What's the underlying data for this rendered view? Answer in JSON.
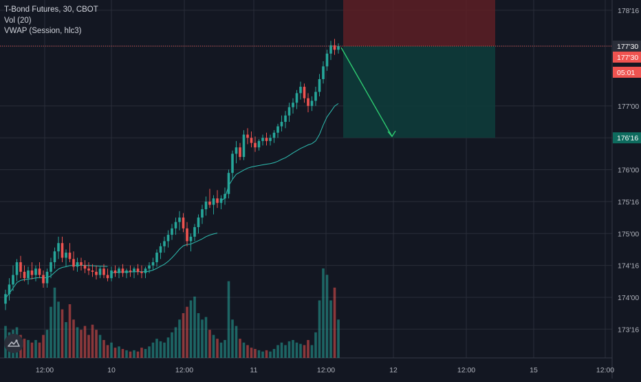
{
  "legend": {
    "symbol_line": "T-Bond Futures, 30, CBOT",
    "volume_line": "Vol (20)",
    "vwap_line": "VWAP (Session, hlc3)"
  },
  "colors": {
    "background": "#131722",
    "grid": "#2a2e39",
    "up": "#26a69a",
    "down": "#ef5350",
    "vwap": "#2fc0b3",
    "arrow": "#2ecc71",
    "stop_zone": "#5d1f25",
    "target_zone": "#0e3b3a"
  },
  "icons": {
    "logo": "tradingview-logo-icon",
    "arrow": "trend-arrow-icon"
  },
  "price_tags": [
    {
      "label": "177'30",
      "price": 177.9375,
      "color": "#ef5350"
    },
    {
      "label": "05:01",
      "price": 177.7,
      "color": "#ef5350"
    },
    {
      "label": "176'16",
      "price": 176.5,
      "color": "#0e6b5e"
    }
  ],
  "position_tool": {
    "type": "short",
    "entry": 177.9375,
    "stop": 178.5,
    "target": 176.5
  },
  "chart_data": {
    "type": "candlestick",
    "title": "T-Bond Futures, 30, CBOT",
    "y_tick_labels": [
      "178'16",
      "177'30",
      "177'00",
      "176'16",
      "176'00",
      "175'16",
      "175'00",
      "174'16",
      "174'00",
      "173'16"
    ],
    "y_tick_values": [
      178.5,
      177.9375,
      177.0,
      176.5,
      176.0,
      175.5,
      175.0,
      174.5,
      174.0,
      173.5
    ],
    "x_tick_labels": [
      "12:00",
      "10",
      "12:00",
      "11",
      "12:00",
      "12",
      "12:00",
      "15",
      "12:00"
    ],
    "ylim": [
      173.05,
      178.66
    ],
    "grid": true,
    "candles": [
      [
        173.9,
        174.12,
        173.8,
        174.05,
        25
      ],
      [
        174.05,
        174.3,
        173.95,
        174.2,
        20
      ],
      [
        174.2,
        174.5,
        174.1,
        174.35,
        22
      ],
      [
        174.35,
        174.6,
        174.25,
        174.55,
        24
      ],
      [
        174.55,
        174.65,
        174.3,
        174.4,
        18
      ],
      [
        174.4,
        174.5,
        174.25,
        174.3,
        15
      ],
      [
        174.3,
        174.48,
        174.2,
        174.42,
        14
      ],
      [
        174.42,
        174.55,
        174.28,
        174.35,
        12
      ],
      [
        174.35,
        174.5,
        174.25,
        174.45,
        14
      ],
      [
        174.45,
        174.55,
        174.3,
        174.35,
        12
      ],
      [
        174.35,
        174.42,
        174.15,
        174.22,
        18
      ],
      [
        174.22,
        174.45,
        174.15,
        174.4,
        22
      ],
      [
        174.4,
        174.62,
        174.3,
        174.55,
        40
      ],
      [
        174.55,
        174.78,
        174.45,
        174.72,
        55
      ],
      [
        174.72,
        174.95,
        174.6,
        174.85,
        44
      ],
      [
        174.85,
        174.95,
        174.55,
        174.62,
        38
      ],
      [
        174.62,
        174.75,
        174.48,
        174.7,
        28
      ],
      [
        174.7,
        174.85,
        174.55,
        174.6,
        42
      ],
      [
        174.6,
        174.72,
        174.42,
        174.48,
        30
      ],
      [
        174.48,
        174.62,
        174.4,
        174.55,
        24
      ],
      [
        174.55,
        174.62,
        174.42,
        174.5,
        22
      ],
      [
        174.5,
        174.58,
        174.38,
        174.45,
        25
      ],
      [
        174.45,
        174.55,
        174.35,
        174.42,
        18
      ],
      [
        174.42,
        174.52,
        174.32,
        174.4,
        26
      ],
      [
        174.4,
        174.5,
        174.28,
        174.35,
        22
      ],
      [
        174.35,
        174.48,
        174.3,
        174.45,
        18
      ],
      [
        174.45,
        174.52,
        174.3,
        174.35,
        14
      ],
      [
        174.35,
        174.45,
        174.25,
        174.3,
        10
      ],
      [
        174.3,
        174.48,
        174.25,
        174.42,
        12
      ],
      [
        174.42,
        174.5,
        174.32,
        174.38,
        8
      ],
      [
        174.38,
        174.48,
        174.3,
        174.45,
        9
      ],
      [
        174.45,
        174.52,
        174.32,
        174.38,
        7
      ],
      [
        174.38,
        174.45,
        174.3,
        174.42,
        6
      ],
      [
        174.42,
        174.5,
        174.32,
        174.4,
        5
      ],
      [
        174.4,
        174.48,
        174.3,
        174.45,
        6
      ],
      [
        174.45,
        174.52,
        174.35,
        174.4,
        5
      ],
      [
        174.4,
        174.5,
        174.3,
        174.38,
        8
      ],
      [
        174.38,
        174.48,
        174.3,
        174.45,
        7
      ],
      [
        174.45,
        174.55,
        174.38,
        174.5,
        9
      ],
      [
        174.5,
        174.62,
        174.42,
        174.55,
        12
      ],
      [
        174.55,
        174.75,
        174.48,
        174.7,
        15
      ],
      [
        174.7,
        174.85,
        174.6,
        174.8,
        13
      ],
      [
        174.8,
        174.95,
        174.7,
        174.88,
        12
      ],
      [
        174.88,
        175.05,
        174.78,
        174.98,
        16
      ],
      [
        174.98,
        175.15,
        174.9,
        175.08,
        20
      ],
      [
        175.08,
        175.25,
        174.98,
        175.18,
        24
      ],
      [
        175.18,
        175.35,
        175.05,
        175.25,
        30
      ],
      [
        175.25,
        175.32,
        175.02,
        175.08,
        35
      ],
      [
        175.08,
        175.18,
        174.8,
        174.88,
        40
      ],
      [
        174.88,
        175.0,
        174.72,
        174.95,
        45
      ],
      [
        174.95,
        175.15,
        174.88,
        175.1,
        48
      ],
      [
        175.1,
        175.3,
        175.0,
        175.25,
        35
      ],
      [
        175.25,
        175.45,
        175.15,
        175.38,
        30
      ],
      [
        175.38,
        175.58,
        175.28,
        175.5,
        32
      ],
      [
        175.5,
        175.7,
        175.4,
        175.45,
        22
      ],
      [
        175.45,
        175.6,
        175.3,
        175.55,
        18
      ],
      [
        175.55,
        175.68,
        175.4,
        175.48,
        15
      ],
      [
        175.48,
        175.6,
        175.38,
        175.55,
        12
      ],
      [
        175.55,
        175.72,
        175.45,
        175.62,
        14
      ],
      [
        175.62,
        176.0,
        175.55,
        175.95,
        60
      ],
      [
        175.95,
        176.3,
        175.85,
        176.25,
        30
      ],
      [
        176.25,
        176.45,
        176.1,
        176.35,
        25
      ],
      [
        176.35,
        176.42,
        176.15,
        176.2,
        15
      ],
      [
        176.2,
        176.62,
        176.15,
        176.55,
        12
      ],
      [
        176.55,
        176.65,
        176.4,
        176.5,
        10
      ],
      [
        176.5,
        176.6,
        176.35,
        176.42,
        8
      ],
      [
        176.42,
        176.52,
        176.28,
        176.35,
        7
      ],
      [
        176.35,
        176.48,
        176.3,
        176.45,
        6
      ],
      [
        176.45,
        176.55,
        176.38,
        176.5,
        5
      ],
      [
        176.5,
        176.58,
        176.38,
        176.45,
        6
      ],
      [
        176.45,
        176.55,
        176.38,
        176.5,
        5
      ],
      [
        176.5,
        176.62,
        176.42,
        176.58,
        7
      ],
      [
        176.58,
        176.72,
        176.5,
        176.68,
        10
      ],
      [
        176.68,
        176.85,
        176.6,
        176.75,
        12
      ],
      [
        176.75,
        176.92,
        176.65,
        176.85,
        10
      ],
      [
        176.85,
        177.05,
        176.75,
        176.98,
        13
      ],
      [
        176.98,
        177.12,
        176.88,
        177.05,
        14
      ],
      [
        177.05,
        177.25,
        176.95,
        177.2,
        12
      ],
      [
        177.2,
        177.38,
        177.1,
        177.3,
        11
      ],
      [
        177.3,
        177.35,
        177.05,
        177.12,
        10
      ],
      [
        177.12,
        177.2,
        176.9,
        177.0,
        14
      ],
      [
        177.0,
        177.15,
        176.92,
        177.08,
        10
      ],
      [
        177.08,
        177.3,
        177.0,
        177.22,
        20
      ],
      [
        177.22,
        177.5,
        177.15,
        177.42,
        45
      ],
      [
        177.42,
        177.7,
        177.35,
        177.62,
        70
      ],
      [
        177.62,
        177.88,
        177.55,
        177.82,
        65
      ],
      [
        177.82,
        178.02,
        177.72,
        177.95,
        45
      ],
      [
        177.95,
        178.05,
        177.8,
        177.88,
        55
      ],
      [
        177.88,
        177.98,
        177.82,
        177.9375,
        30
      ]
    ]
  }
}
